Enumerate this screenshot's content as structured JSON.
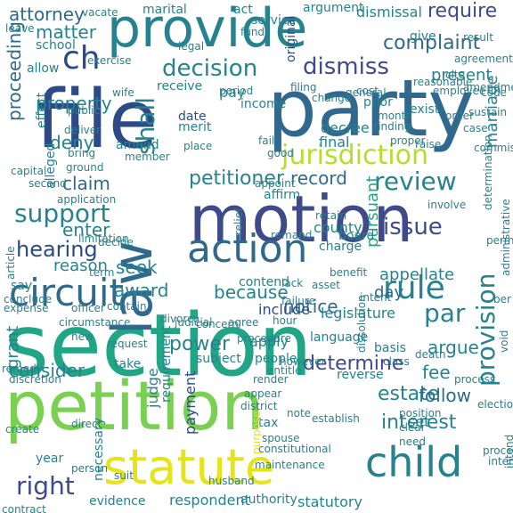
{
  "palette": {
    "dark_blue": "#2c4a86",
    "indigo": "#3e4a89",
    "purple": "#46327e",
    "blue": "#31688e",
    "teal": "#26828e",
    "teal_green": "#21a685",
    "green": "#3bbb75",
    "light_green": "#7ad151",
    "lime": "#b5de2b",
    "yellow": "#e4e419",
    "deep_purple": "#440154"
  },
  "words": [
    "section",
    "petition",
    "motion",
    "file",
    "party",
    "law",
    "provide",
    "statute",
    "action",
    "circuit",
    "child",
    "jurisdiction",
    "decision",
    "dismiss",
    "support",
    "rule",
    "review",
    "hearing",
    "issue",
    "provision",
    "complaint",
    "proceeding",
    "petitioner",
    "require",
    "par",
    "determine",
    "interest",
    "right",
    "consider",
    "present",
    "attorney",
    "matter",
    "ch",
    "property",
    "claim",
    "deny",
    "because",
    "enter",
    "record",
    "marriage",
    "estate",
    "notice",
    "power",
    "grant",
    "shall",
    "seek",
    "award",
    "argue",
    "appellate",
    "fee",
    "day",
    "follow",
    "pursuant",
    "reason",
    "legislature",
    "include",
    "evidence",
    "respondent",
    "authority",
    "statutory",
    "payment",
    "judge",
    "requirement",
    "county",
    "charge",
    "say",
    "date",
    "pay",
    "income",
    "apply",
    "people",
    "language",
    "subject",
    "tax",
    "contend",
    "board",
    "purpose",
    "set",
    "decree",
    "final",
    "dismissal",
    "marital",
    "act",
    "argument",
    "service",
    "original",
    "give",
    "result",
    "vacate",
    "leave",
    "school",
    "allow",
    "exercise",
    "agreement",
    "fund",
    "legal",
    "affirm",
    "remand",
    "alleged",
    "effect",
    "wife",
    "public",
    "deliver",
    "bring",
    "ground",
    "amend",
    "member",
    "merit",
    "place",
    "receive",
    "period",
    "prior",
    "exist",
    "month",
    "finding",
    "cite",
    "amendment",
    "second",
    "application",
    "article",
    "limitation",
    "decide",
    "term",
    "conclude",
    "expense",
    "officer",
    "contain",
    "divorce",
    "procedure",
    "lack",
    "asset",
    "failure",
    "benefit",
    "intent",
    "judicial",
    "discretion",
    "circumstance",
    "concern",
    "agree",
    "hour",
    "request",
    "remedy",
    "take",
    "new",
    "entitle",
    "reverse",
    "class",
    "basis",
    "death",
    "process",
    "administrative",
    "dissolution",
    "note",
    "appear",
    "district",
    "render",
    "however",
    "clear",
    "need",
    "spouse",
    "proceed",
    "constitutional",
    "establish",
    "maintenance",
    "husband",
    "suit",
    "person",
    "year",
    "necessary",
    "direct",
    "position",
    "election",
    "contract",
    "intend",
    "interpretation",
    "void",
    "permit",
    "ber",
    "create",
    "involve",
    "relief",
    "cost",
    "code",
    "employee",
    "proper",
    "general",
    "raise",
    "case",
    "filing",
    "reasonable",
    "order",
    "fail",
    "appoint",
    "good",
    "change",
    "retain",
    "capital",
    "sustain",
    "commission",
    "determination"
  ]
}
